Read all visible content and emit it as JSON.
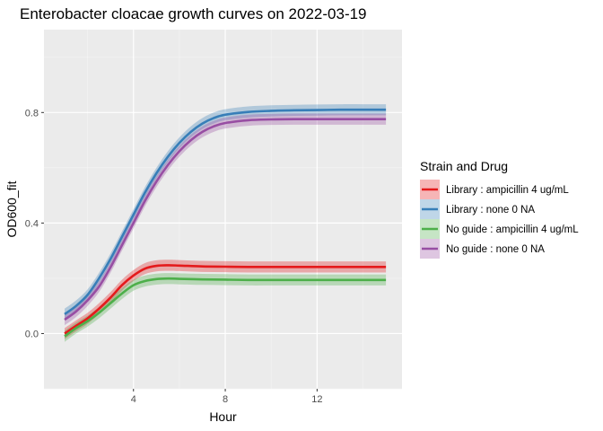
{
  "chart_data": {
    "type": "line",
    "title": "Enterobacter cloacae growth curves on 2022-03-19",
    "xlabel": "Hour",
    "ylabel": "OD600_fit",
    "xlim": [
      0.1,
      15.7
    ],
    "ylim": [
      -0.2,
      1.1
    ],
    "x_ticks": [
      4,
      8,
      12
    ],
    "y_ticks": [
      0.0,
      0.4,
      0.8
    ],
    "x_tick_labels": [
      "4",
      "8",
      "12"
    ],
    "y_tick_labels": [
      "0.0",
      "0.4",
      "0.8"
    ],
    "grid": true,
    "legend": {
      "title": "Strain and Drug",
      "position": "right"
    },
    "series": [
      {
        "name": "Library : ampicillin 4 ug/mL",
        "color": "#e41a1c",
        "x": [
          1,
          1.5,
          2,
          2.5,
          3,
          3.5,
          4,
          4.5,
          5,
          5.5,
          6,
          7,
          8,
          9,
          10,
          11,
          12,
          13,
          14,
          15
        ],
        "y": [
          0.0,
          0.028,
          0.055,
          0.09,
          0.13,
          0.175,
          0.21,
          0.235,
          0.245,
          0.247,
          0.246,
          0.243,
          0.242,
          0.241,
          0.241,
          0.241,
          0.241,
          0.241,
          0.241,
          0.241
        ]
      },
      {
        "name": "Library : none 0 NA",
        "color": "#377eb8",
        "x": [
          1,
          1.5,
          2,
          2.5,
          3,
          3.5,
          4,
          4.5,
          5,
          5.5,
          6,
          6.5,
          7,
          7.5,
          8,
          9,
          10,
          11,
          12,
          13,
          14,
          15
        ],
        "y": [
          0.07,
          0.1,
          0.14,
          0.2,
          0.27,
          0.35,
          0.43,
          0.51,
          0.58,
          0.64,
          0.69,
          0.73,
          0.76,
          0.78,
          0.792,
          0.802,
          0.806,
          0.808,
          0.809,
          0.81,
          0.81,
          0.81
        ]
      },
      {
        "name": "No guide : ampicillin 4 ug/mL",
        "color": "#4daf4a",
        "x": [
          1,
          1.5,
          2,
          2.5,
          3,
          3.5,
          4,
          4.5,
          5,
          5.5,
          6,
          7,
          8,
          9,
          10,
          11,
          12,
          13,
          14,
          15
        ],
        "y": [
          -0.01,
          0.02,
          0.045,
          0.075,
          0.11,
          0.145,
          0.175,
          0.19,
          0.197,
          0.199,
          0.198,
          0.196,
          0.195,
          0.194,
          0.194,
          0.194,
          0.194,
          0.194,
          0.194,
          0.194
        ]
      },
      {
        "name": "No guide : none 0 NA",
        "color": "#984ea3",
        "x": [
          1,
          1.5,
          2,
          2.5,
          3,
          3.5,
          4,
          4.5,
          5,
          5.5,
          6,
          6.5,
          7,
          7.5,
          8,
          9,
          10,
          11,
          12,
          13,
          14,
          15
        ],
        "y": [
          0.05,
          0.08,
          0.12,
          0.17,
          0.24,
          0.32,
          0.4,
          0.48,
          0.55,
          0.61,
          0.66,
          0.7,
          0.73,
          0.75,
          0.762,
          0.772,
          0.775,
          0.776,
          0.776,
          0.776,
          0.776,
          0.776
        ]
      }
    ]
  }
}
